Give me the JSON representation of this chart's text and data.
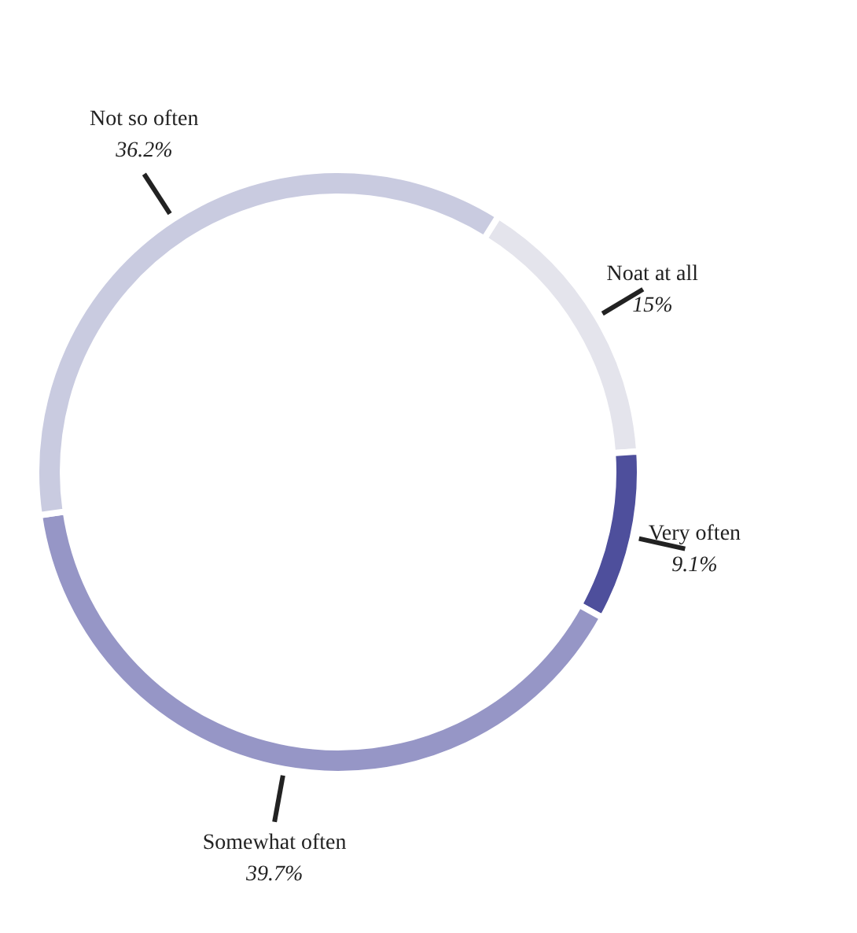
{
  "chart_data": {
    "type": "donut",
    "categories": [
      "Noat at all",
      "Very often",
      "Somewhat often",
      "Not so often"
    ],
    "values": [
      15,
      9.1,
      39.7,
      36.2
    ],
    "value_labels": [
      "15%",
      "9.1%",
      "39.7%",
      "36.2%"
    ],
    "colors": [
      "#e4e4ec",
      "#4e4f9c",
      "#9696c6",
      "#c9cbe0"
    ]
  }
}
